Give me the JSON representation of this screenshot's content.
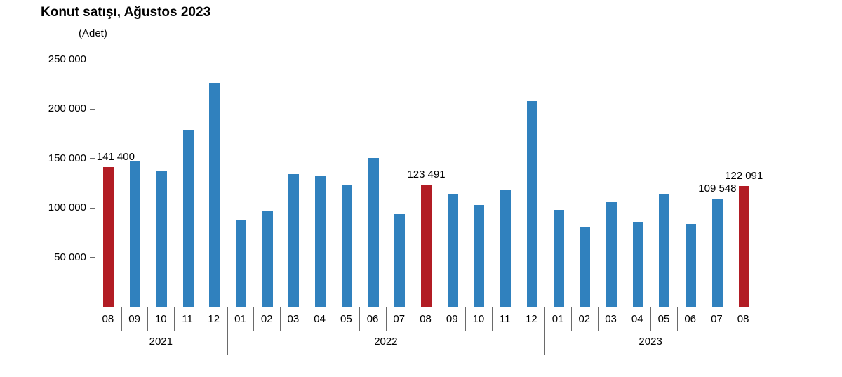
{
  "title": "Konut satışı, Ağustos 2023",
  "unit_label": "(Adet)",
  "colors": {
    "bar_default": "#3081be",
    "bar_highlight": "#b21c24",
    "axis": "#6a6a6a",
    "text": "#000000"
  },
  "chart_data": {
    "type": "bar",
    "title": "Konut satışı, Ağustos 2023",
    "ylabel": "(Adet)",
    "xlabel": "",
    "ylim": [
      0,
      250000
    ],
    "grid": false,
    "legend": false,
    "yticks": [
      {
        "value": 50000,
        "label": "50 000"
      },
      {
        "value": 100000,
        "label": "100 000"
      },
      {
        "value": 150000,
        "label": "150 000"
      },
      {
        "value": 200000,
        "label": "200 000"
      },
      {
        "value": 250000,
        "label": "250 000"
      }
    ],
    "groups": [
      {
        "year": "2021",
        "months": [
          {
            "month": "08",
            "value": 141400,
            "highlight": true,
            "data_label": "141 400"
          },
          {
            "month": "09",
            "value": 147143,
            "highlight": false
          },
          {
            "month": "10",
            "value": 137401,
            "highlight": false
          },
          {
            "month": "11",
            "value": 178814,
            "highlight": false
          },
          {
            "month": "12",
            "value": 226503,
            "highlight": false
          }
        ]
      },
      {
        "year": "2022",
        "months": [
          {
            "month": "01",
            "value": 88306,
            "highlight": false
          },
          {
            "month": "02",
            "value": 97587,
            "highlight": false
          },
          {
            "month": "03",
            "value": 134170,
            "highlight": false
          },
          {
            "month": "04",
            "value": 133058,
            "highlight": false
          },
          {
            "month": "05",
            "value": 122768,
            "highlight": false
          },
          {
            "month": "06",
            "value": 150509,
            "highlight": false
          },
          {
            "month": "07",
            "value": 93902,
            "highlight": false
          },
          {
            "month": "08",
            "value": 123491,
            "highlight": true,
            "data_label": "123 491"
          },
          {
            "month": "09",
            "value": 113366,
            "highlight": false
          },
          {
            "month": "10",
            "value": 102660,
            "highlight": false
          },
          {
            "month": "11",
            "value": 117806,
            "highlight": false
          },
          {
            "month": "12",
            "value": 207963,
            "highlight": false
          }
        ]
      },
      {
        "year": "2023",
        "months": [
          {
            "month": "01",
            "value": 97708,
            "highlight": false
          },
          {
            "month": "02",
            "value": 80031,
            "highlight": false
          },
          {
            "month": "03",
            "value": 105476,
            "highlight": false
          },
          {
            "month": "04",
            "value": 85652,
            "highlight": false
          },
          {
            "month": "05",
            "value": 113976,
            "highlight": false
          },
          {
            "month": "06",
            "value": 83636,
            "highlight": false
          },
          {
            "month": "07",
            "value": 109548,
            "highlight": false,
            "data_label": "109 548"
          },
          {
            "month": "08",
            "value": 122091,
            "highlight": true,
            "data_label": "122 091"
          }
        ]
      }
    ]
  }
}
